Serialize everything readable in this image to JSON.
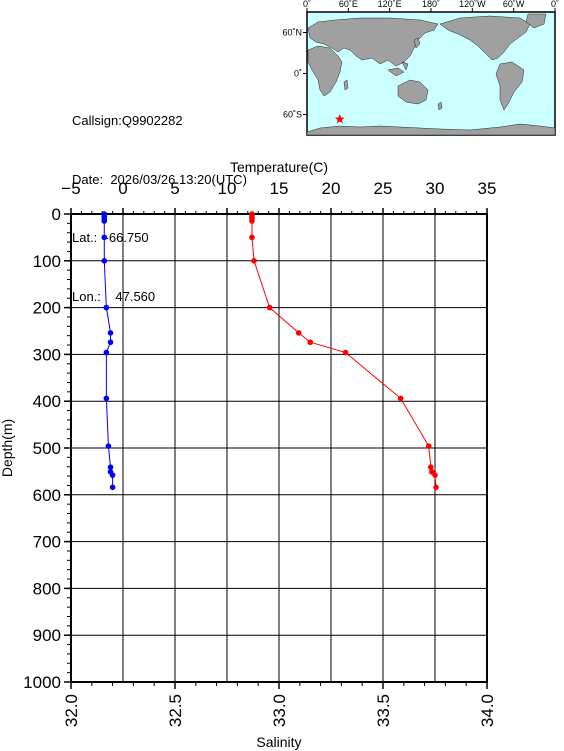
{
  "station": {
    "callsign_label": "Callsign:",
    "callsign": "Q9902282",
    "date_label": "Date:",
    "date": "2026/03/26 13:20(UTC)",
    "lat_label": "Lat.:",
    "lat": "-66.750",
    "lon_label": "Lon.:",
    "lon": "47.560"
  },
  "map": {
    "lon_ticks": [
      "0˚",
      "60˚E",
      "120˚E",
      "180˚",
      "120˚W",
      "60˚W",
      "0˚"
    ],
    "lat_ticks": [
      "60˚N",
      "0˚",
      "60˚S"
    ],
    "marker_lon": 47.56,
    "marker_lat": -66.75,
    "colors": {
      "ocean": "#ccffff",
      "land": "#a0a0a0",
      "marker": "#ff0000"
    }
  },
  "chart_data": {
    "type": "line",
    "top_axis_label": "Temperature(C)",
    "bottom_axis_label": "Salinity",
    "y_axis_label": "Depth(m)",
    "temperature_range": [
      -5,
      35
    ],
    "salinity_range": [
      32.0,
      34.0
    ],
    "depth_range": [
      0,
      1000
    ],
    "temperature_ticks": [
      "−5",
      "0",
      "5",
      "10",
      "15",
      "20",
      "25",
      "30",
      "35"
    ],
    "salinity_ticks": [
      "32.0",
      "32.5",
      "33.0",
      "33.5",
      "34.0"
    ],
    "depth_ticks": [
      "0",
      "100",
      "200",
      "300",
      "400",
      "500",
      "600",
      "700",
      "800",
      "900",
      "1000"
    ],
    "grid": true,
    "series": [
      {
        "variable": "temperature",
        "color": "#ff0000",
        "depth": [
          0,
          5,
          10,
          15,
          50,
          100,
          200,
          254,
          274,
          296,
          394,
          496,
          541,
          551,
          558,
          584
        ],
        "values": [
          12.4,
          12.4,
          12.4,
          12.4,
          12.4,
          12.6,
          14.1,
          16.9,
          18.0,
          21.4,
          26.7,
          29.4,
          29.6,
          29.7,
          30.0,
          30.1
        ]
      },
      {
        "variable": "salinity",
        "color": "#0000ff",
        "depth": [
          0,
          5,
          10,
          15,
          50,
          100,
          200,
          254,
          274,
          296,
          394,
          496,
          541,
          551,
          558,
          584
        ],
        "values": [
          32.16,
          32.16,
          32.16,
          32.16,
          32.16,
          32.16,
          32.17,
          32.19,
          32.19,
          32.17,
          32.17,
          32.18,
          32.19,
          32.19,
          32.2,
          32.2
        ]
      }
    ]
  }
}
